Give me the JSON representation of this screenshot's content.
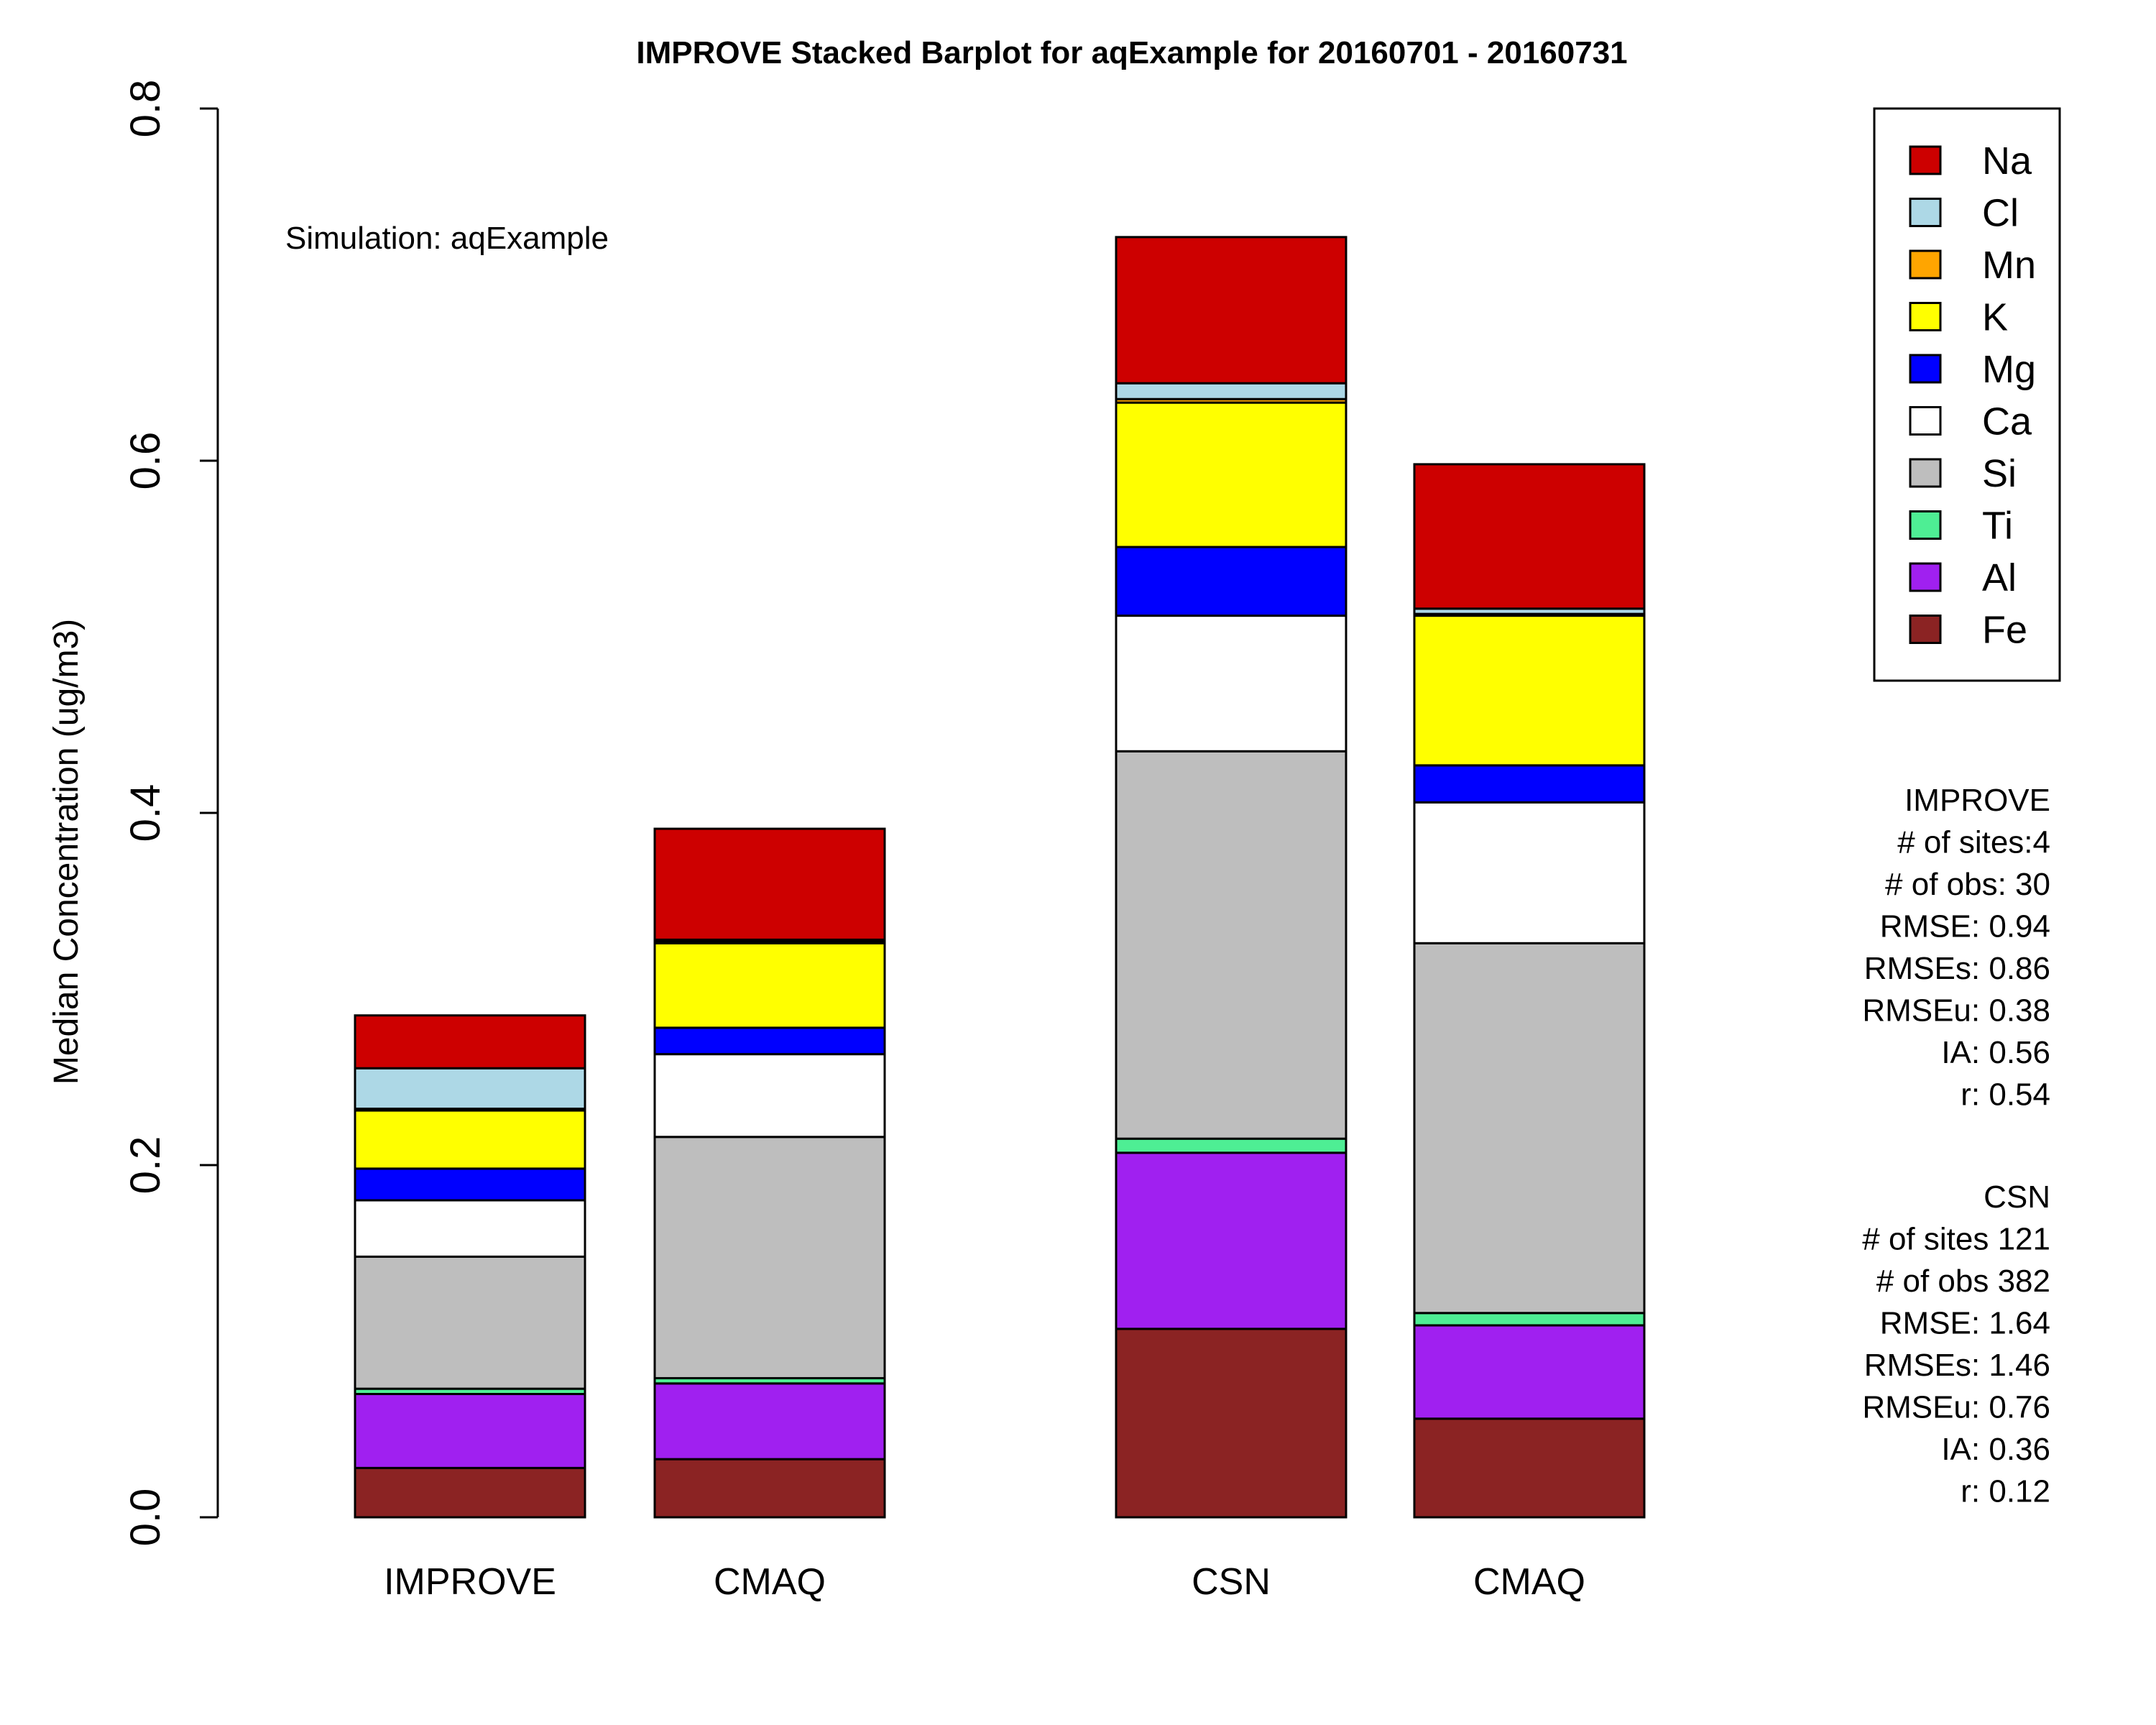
{
  "chart_data": {
    "type": "bar",
    "stacked": true,
    "title": "IMPROVE Stacked Barplot for aqExample for 20160701 - 20160731",
    "subtitle": "Simulation: aqExample",
    "xlabel": "",
    "ylabel": "Median Concentration (ug/m3)",
    "ylim": [
      0,
      0.8
    ],
    "yticks": [
      "0.0",
      "0.2",
      "0.4",
      "0.6",
      "0.8"
    ],
    "grid": false,
    "legend_position": "top-right",
    "categories": [
      "IMPROVE",
      "CMAQ",
      "CSN",
      "CMAQ"
    ],
    "groups": [
      [
        0,
        1
      ],
      [
        2,
        3
      ]
    ],
    "series": [
      {
        "name": "Fe",
        "color": "#8B2323",
        "values": [
          0.028,
          0.033,
          0.107,
          0.056
        ]
      },
      {
        "name": "Al",
        "color": "#A020F0",
        "values": [
          0.042,
          0.043,
          0.1,
          0.053
        ]
      },
      {
        "name": "Ti",
        "color": "#4EEE94",
        "values": [
          0.003,
          0.003,
          0.008,
          0.007
        ]
      },
      {
        "name": "Si",
        "color": "#BEBEBE",
        "values": [
          0.075,
          0.137,
          0.22,
          0.21
        ]
      },
      {
        "name": "Ca",
        "color": "#FFFFFF",
        "values": [
          0.032,
          0.047,
          0.077,
          0.08
        ]
      },
      {
        "name": "Mg",
        "color": "#0000FF",
        "values": [
          0.018,
          0.015,
          0.039,
          0.021
        ]
      },
      {
        "name": "K",
        "color": "#FFFF00",
        "values": [
          0.033,
          0.048,
          0.082,
          0.085
        ]
      },
      {
        "name": "Mn",
        "color": "#FFA500",
        "values": [
          0.001,
          0.001,
          0.002,
          0.001
        ]
      },
      {
        "name": "Cl",
        "color": "#ADD8E6",
        "values": [
          0.023,
          0.001,
          0.009,
          0.003
        ]
      },
      {
        "name": "Na",
        "color": "#CD0000",
        "values": [
          0.03,
          0.063,
          0.083,
          0.082
        ]
      }
    ]
  },
  "stats": {
    "improve": [
      "IMPROVE",
      "# of sites:4",
      "# of obs: 30",
      "RMSE: 0.94",
      "RMSEs: 0.86",
      "RMSEu: 0.38",
      "IA:   0.56",
      "r:   0.54"
    ],
    "csn": [
      "CSN",
      "# of sites 121",
      "# of obs 382",
      "RMSE: 1.64",
      "RMSEs: 1.46",
      "RMSEu: 0.76",
      "IA:   0.36",
      "r:   0.12"
    ]
  }
}
